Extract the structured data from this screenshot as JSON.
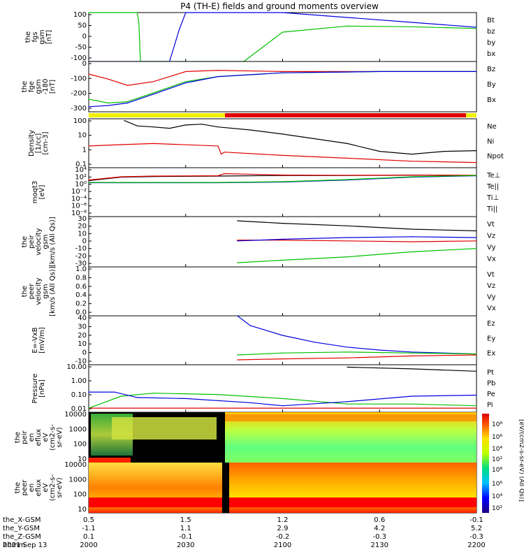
{
  "title": "P4 (TH-E) fields and ground moments overview",
  "x_axis": {
    "ticks_minutes": [
      0,
      30,
      60,
      90,
      120
    ],
    "rows": [
      {
        "label": "the_X-GSM",
        "values": [
          "0.5",
          "1.5",
          "1.2",
          "0.6",
          "-0.1"
        ]
      },
      {
        "label": "the_Y-GSM",
        "values": [
          "-1.1",
          "1.1",
          "2.9",
          "4.2",
          "5.2"
        ]
      },
      {
        "label": "the_Z-GSM",
        "values": [
          "0.1",
          "-0.1",
          "-0.2",
          "-0.3",
          "-0.3"
        ]
      },
      {
        "label": "hhmm",
        "values": [
          "2000",
          "2030",
          "2100",
          "2130",
          "2200"
        ]
      }
    ],
    "date": "2021 Sep 13",
    "range_minutes": [
      0,
      120
    ]
  },
  "colors": {
    "black": "#000000",
    "red": "#e00000",
    "green": "#00c000",
    "blue": "#0000e0",
    "yellow": "#f0f000"
  },
  "panels": [
    {
      "key": "p1",
      "ylabel": [
        "the",
        "fgs",
        "gsm",
        "[nT]"
      ],
      "ticks": [
        "100",
        "50",
        "0",
        "-50",
        "-100"
      ],
      "legend": [
        {
          "text": "Bt",
          "color": "#000000"
        },
        {
          "text": "bz",
          "color": "#e00000"
        },
        {
          "text": "by",
          "color": "#00c000"
        },
        {
          "text": "bx",
          "color": "#0000e0"
        }
      ]
    },
    {
      "key": "p2",
      "ylabel": [
        "the",
        "fge",
        "gsm",
        "-180",
        "[nT]"
      ],
      "ticks": [
        "0",
        "-100",
        "-200",
        "-300"
      ],
      "legend": [
        {
          "text": "Bz",
          "color": "#e00000"
        },
        {
          "text": "By",
          "color": "#00c000"
        },
        {
          "text": "Bx",
          "color": "#0000e0"
        }
      ]
    },
    {
      "key": "p4",
      "ylabel": [
        "Density",
        "[1/cc]",
        "[cm-3]"
      ],
      "ticks": [
        "100",
        "10",
        "1",
        "0.1"
      ],
      "legend": [
        {
          "text": "Ne",
          "color": "#e00000"
        },
        {
          "text": "Ni",
          "color": "#000000"
        },
        {
          "text": "Npot",
          "color": "#0000e0"
        }
      ]
    },
    {
      "key": "p5",
      "ylabel": [
        "moqt3",
        "[eV]"
      ],
      "ticks": [
        "10⁴",
        "10²",
        "10⁰",
        "10⁻²",
        "10⁻⁴",
        "10⁻⁶",
        "10⁻⁸"
      ],
      "legend": [
        {
          "text": "Te⊥",
          "color": "#e00000"
        },
        {
          "text": "Te||",
          "color": "#000000"
        },
        {
          "text": "Ti⊥",
          "color": "#0000e0"
        },
        {
          "text": "Ti||",
          "color": "#00c000"
        }
      ]
    },
    {
      "key": "p6",
      "ylabel": [
        "the",
        "peir",
        "velocity",
        "gsm",
        "[km/s (All Qs)]"
      ],
      "ticks": [
        "30",
        "20",
        "10",
        "0",
        "-10",
        "-20",
        "-30"
      ],
      "legend": [
        {
          "text": "Vt",
          "color": "#000000"
        },
        {
          "text": "Vz",
          "color": "#e00000"
        },
        {
          "text": "Vy",
          "color": "#00c000"
        },
        {
          "text": "Vx",
          "color": "#0000e0"
        }
      ]
    },
    {
      "key": "p7",
      "ylabel": [
        "the",
        "peer",
        "velocity",
        "gsm",
        "[km/s (All Qs)]"
      ],
      "ticks": [
        "1.0",
        "0.8",
        "0.6",
        "0.4",
        "0.2",
        "0.0"
      ],
      "legend": [
        {
          "text": "Vt",
          "color": "#000000"
        },
        {
          "text": "Vz",
          "color": "#e00000"
        },
        {
          "text": "Vy",
          "color": "#00c000"
        },
        {
          "text": "Vx",
          "color": "#0000e0"
        }
      ]
    },
    {
      "key": "p8",
      "ylabel": [
        "E=-VxB",
        "[mV/m]"
      ],
      "ticks": [
        "40",
        "30",
        "20",
        "10",
        "0",
        "-10"
      ],
      "legend": [
        {
          "text": "Ez",
          "color": "#e00000"
        },
        {
          "text": "Ey",
          "color": "#00c000"
        },
        {
          "text": "Ex",
          "color": "#0000e0"
        }
      ]
    },
    {
      "key": "p9",
      "ylabel": [
        "Pressure",
        "[nPa]"
      ],
      "ticks": [
        "10.00",
        "1.00",
        "0.10",
        "0.01"
      ],
      "legend": [
        {
          "text": "Pt",
          "color": "#000000"
        },
        {
          "text": "Pb",
          "color": "#e00000"
        },
        {
          "text": "Pe",
          "color": "#00c000"
        },
        {
          "text": "Pi",
          "color": "#0000e0"
        }
      ]
    },
    {
      "key": "p10",
      "ylabel": [
        "the",
        "peir",
        "en",
        "eflux",
        "eV",
        "(cm2-s-",
        "sr-eV)"
      ],
      "ticks": [
        "10000",
        "1000",
        "100",
        "10"
      ]
    },
    {
      "key": "p11",
      "ylabel": [
        "the",
        "peer",
        "en",
        "eflux",
        "eV",
        "(cm2-s-",
        "sr-eV)"
      ],
      "ticks": [
        "10000",
        "1000",
        "100",
        "10"
      ]
    }
  ],
  "colorbar": {
    "label": "[eV/(cm2-s-sr-eV) (All Qs)]",
    "ticks_top": [
      "10⁸",
      "10⁶",
      "10⁴",
      "10²"
    ],
    "ticks_bottom": [
      "10⁸",
      "10⁶",
      "10⁴",
      "10²"
    ]
  },
  "chart_data": [
    {
      "type": "line",
      "title": "P4 (TH-E) fields and ground moments overview",
      "panel": "fgs gsm",
      "ylabel": "the fgs gsm [nT]",
      "ylim": [
        -100,
        100
      ],
      "series": [
        {
          "name": "bx",
          "x": [
            0,
            20,
            25,
            28,
            30,
            40,
            60,
            80,
            100,
            120
          ],
          "y": [
            -100,
            -100,
            -100,
            30,
            100,
            100,
            100,
            80,
            60,
            40
          ]
        },
        {
          "name": "by",
          "x": [
            0,
            4,
            15,
            15.5,
            16,
            30,
            48,
            60,
            80,
            100,
            120
          ],
          "y": [
            100,
            100,
            100,
            60,
            -100,
            -100,
            -100,
            20,
            45,
            42,
            35
          ]
        }
      ]
    },
    {
      "type": "line",
      "panel": "fge gsm -180",
      "ylabel": "the fge gsm -180 [nT]",
      "ylim": [
        -320,
        80
      ],
      "series": [
        {
          "name": "Bz",
          "x": [
            0,
            6,
            12,
            20,
            30,
            40,
            60,
            90,
            120
          ],
          "y": [
            -20,
            -60,
            -110,
            -80,
            0,
            10,
            0,
            0,
            0
          ]
        },
        {
          "name": "By",
          "x": [
            0,
            6,
            12,
            20,
            30,
            40,
            60,
            90,
            120
          ],
          "y": [
            -220,
            -250,
            -240,
            -170,
            -80,
            -40,
            -10,
            0,
            0
          ]
        },
        {
          "name": "Bx",
          "x": [
            0,
            6,
            12,
            20,
            30,
            40,
            60,
            90,
            120
          ],
          "y": [
            -280,
            -270,
            -250,
            -180,
            -90,
            -40,
            -10,
            0,
            0
          ]
        }
      ]
    },
    {
      "type": "line",
      "panel": "Density",
      "ylabel": "Density [1/cc] [cm-3]",
      "ylim": [
        0.05,
        200
      ],
      "yscale": "log",
      "series": [
        {
          "name": "Ni",
          "x": [
            11,
            15,
            20,
            25,
            30,
            35,
            40,
            50,
            60,
            80,
            90,
            100,
            110,
            120
          ],
          "y": [
            150,
            60,
            50,
            40,
            70,
            80,
            50,
            30,
            15,
            3,
            0.8,
            0.5,
            0.8,
            0.9
          ]
        },
        {
          "name": "Ne",
          "x": [
            0,
            10,
            20,
            40,
            41,
            42,
            60,
            80,
            100,
            120
          ],
          "y": [
            2,
            2.5,
            3,
            2,
            0.5,
            0.7,
            0.4,
            0.25,
            0.15,
            0.12
          ]
        }
      ]
    },
    {
      "type": "line",
      "panel": "moqt3",
      "ylabel": "moqt3 [eV]",
      "ylim": [
        1e-09,
        100000.0
      ],
      "yscale": "log",
      "series": [
        {
          "name": "Te||",
          "x": [
            0,
            10,
            20,
            40,
            60,
            80,
            100,
            120
          ],
          "y": [
            20,
            200,
            300,
            400,
            600,
            600,
            700,
            600
          ]
        },
        {
          "name": "Te⊥",
          "x": [
            0,
            10,
            20,
            40,
            42,
            60,
            80,
            100,
            120
          ],
          "y": [
            30,
            250,
            400,
            500,
            2000,
            800,
            700,
            800,
            700
          ]
        },
        {
          "name": "Ti⊥",
          "x": [
            0,
            20,
            40,
            60,
            80,
            100,
            120
          ],
          "y": [
            5,
            5,
            5,
            8,
            30,
            200,
            500
          ]
        },
        {
          "name": "Ti||",
          "x": [
            0,
            20,
            40,
            60,
            80,
            100,
            120
          ],
          "y": [
            6,
            6,
            6,
            10,
            40,
            250,
            600
          ]
        }
      ]
    },
    {
      "type": "line",
      "panel": "peir velocity",
      "ylabel": "the peir velocity gsm [km/s (All Qs)]",
      "ylim": [
        -30,
        30
      ],
      "series": [
        {
          "name": "Vt",
          "x": [
            46,
            60,
            80,
            100,
            120
          ],
          "y": [
            25,
            22,
            19,
            15,
            13
          ]
        },
        {
          "name": "Vz",
          "x": [
            46,
            60,
            80,
            100,
            120
          ],
          "y": [
            2,
            2,
            1,
            0,
            1
          ]
        },
        {
          "name": "Vy",
          "x": [
            46,
            60,
            80,
            100,
            120
          ],
          "y": [
            -25,
            -22,
            -18,
            -12,
            -8
          ]
        },
        {
          "name": "Vx",
          "x": [
            46,
            60,
            80,
            100,
            120
          ],
          "y": [
            1,
            3,
            5,
            6,
            5
          ]
        }
      ]
    },
    {
      "type": "line",
      "panel": "peer velocity",
      "ylabel": "the peer velocity gsm [km/s (All Qs)]",
      "ylim": [
        0,
        1
      ],
      "series": []
    },
    {
      "type": "line",
      "panel": "E=-VxB",
      "ylabel": "E=-VxB [mV/m]",
      "ylim": [
        -10,
        40
      ],
      "series": [
        {
          "name": "Ex",
          "x": [
            46,
            50,
            60,
            70,
            80,
            90,
            100,
            110,
            120
          ],
          "y": [
            40,
            30,
            20,
            13,
            8,
            5,
            3,
            2,
            1
          ]
        },
        {
          "name": "Ey",
          "x": [
            46,
            60,
            80,
            100,
            120
          ],
          "y": [
            0,
            2,
            3,
            2,
            1
          ]
        },
        {
          "name": "Ez",
          "x": [
            46,
            60,
            80,
            100,
            120
          ],
          "y": [
            -5,
            -4,
            -3,
            -1,
            0
          ]
        }
      ]
    },
    {
      "type": "line",
      "panel": "Pressure",
      "ylabel": "Pressure [nPa]",
      "ylim": [
        0.01,
        30
      ],
      "yscale": "log",
      "series": [
        {
          "name": "Pt",
          "x": [
            80,
            100,
            120
          ],
          "y": [
            20,
            15,
            10
          ]
        },
        {
          "name": "Pb",
          "x": [
            0,
            120
          ],
          "y": [
            0.02,
            0.02
          ]
        },
        {
          "name": "Pe",
          "x": [
            0,
            10,
            20,
            40,
            60,
            80,
            100,
            120
          ],
          "y": [
            0.02,
            0.15,
            0.25,
            0.2,
            0.1,
            0.04,
            0.04,
            0.03
          ]
        },
        {
          "name": "Pi",
          "x": [
            0,
            8,
            15,
            30,
            50,
            60,
            80,
            100,
            120
          ],
          "y": [
            0.3,
            0.3,
            0.12,
            0.1,
            0.05,
            0.03,
            0.06,
            0.15,
            0.18
          ]
        }
      ]
    },
    {
      "type": "heatmap",
      "panel": "peir en eflux",
      "ylabel": "the peir en eflux eV (cm2-s- sr-eV)",
      "ylim": [
        5,
        20000
      ],
      "yscale": "log"
    },
    {
      "type": "heatmap",
      "panel": "peer en eflux",
      "ylabel": "the peer en eflux eV (cm2-s- sr-eV)",
      "ylim": [
        5,
        20000
      ],
      "yscale": "log"
    }
  ]
}
